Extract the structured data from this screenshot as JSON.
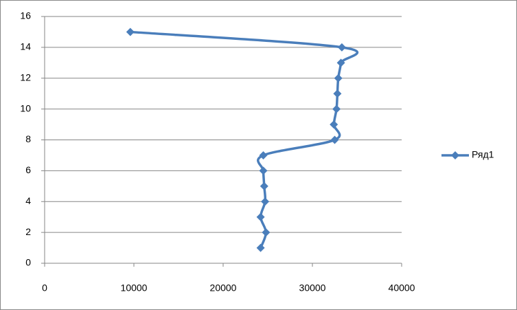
{
  "chart_data": {
    "type": "scatter-smooth",
    "x": [
      24200,
      24800,
      24200,
      24700,
      24600,
      24500,
      24500,
      32500,
      32400,
      32700,
      32800,
      32900,
      33200,
      33300,
      9600
    ],
    "series": [
      {
        "name": "Ряд1",
        "color": "#4a7ebb",
        "values": [
          1,
          2,
          3,
          4,
          5,
          6,
          7,
          8,
          9,
          10,
          11,
          12,
          13,
          14,
          15
        ]
      }
    ],
    "xlim": [
      0,
      40000
    ],
    "xticks": [
      0,
      10000,
      20000,
      30000,
      40000
    ],
    "ylim": [
      0,
      16
    ],
    "yticks": [
      0,
      2,
      4,
      6,
      8,
      10,
      12,
      14,
      16
    ],
    "grid": true,
    "legend": "right"
  }
}
